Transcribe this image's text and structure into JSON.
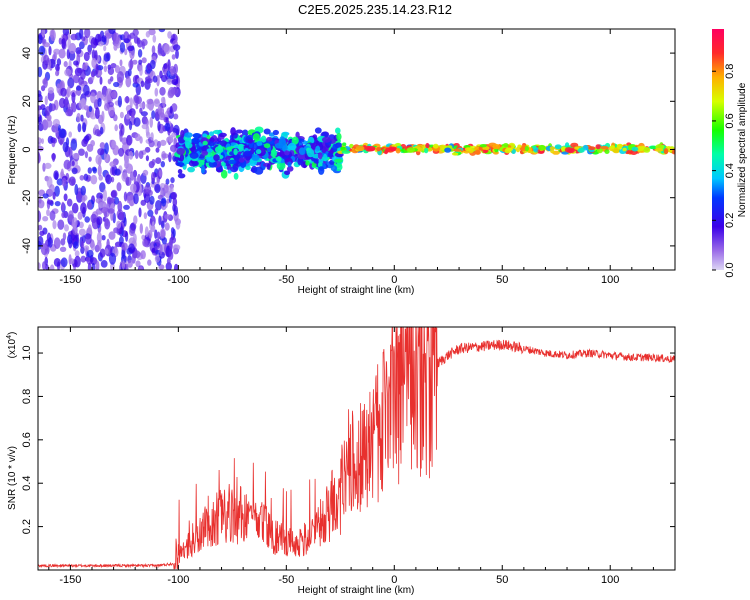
{
  "figure": {
    "title": "C2E5.2025.235.14.23.R12"
  },
  "colors": {
    "snr_line": "#e8302e",
    "axes": "#000000",
    "spectrogram_bg": "#ffffff"
  },
  "chart_data": [
    {
      "type": "heatmap",
      "name": "spectrogram",
      "title": "C2E5.2025.235.14.23.R12",
      "xlabel": "Height of straight line (km)",
      "ylabel": "Frequency (Hz)",
      "xlim": [
        -165,
        130
      ],
      "ylim": [
        -50,
        50
      ],
      "xticks": [
        -150,
        -100,
        -50,
        0,
        50,
        100
      ],
      "yticks": [
        -40,
        -20,
        0,
        20,
        40
      ],
      "description_regions": [
        {
          "x_range": [
            -165,
            -100
          ],
          "freq_range": [
            -50,
            50
          ],
          "amplitude_range": [
            0.05,
            0.25
          ],
          "pattern": "scattered"
        },
        {
          "x_range": [
            -100,
            -25
          ],
          "freq_range": [
            -12,
            10
          ],
          "amplitude_range": [
            0.15,
            0.55
          ],
          "pattern": "band"
        },
        {
          "x_range": [
            -25,
            130
          ],
          "freq_range": [
            -2,
            2.5
          ],
          "amplitude_range": [
            0.3,
            0.95
          ],
          "pattern": "narrow-band"
        }
      ],
      "colorbar": {
        "label": "Normalized spectral amplitude",
        "ticks": [
          0.0,
          0.2,
          0.4,
          0.6,
          0.8
        ],
        "tick_labels": [
          "0.0",
          "0.2",
          "0.4",
          "0.6",
          "0.8"
        ],
        "range": [
          0,
          0.97
        ]
      }
    },
    {
      "type": "line",
      "name": "snr",
      "xlabel": "Height of straight line (km)",
      "ylabel": "SNR (10 * v/v)",
      "scale_label": "(x10",
      "scale_exp": "4",
      "scale_close": ")",
      "xlim": [
        -165,
        130
      ],
      "ylim": [
        0,
        1.12
      ],
      "xticks": [
        -150,
        -100,
        -50,
        0,
        50,
        100
      ],
      "yticks": [
        0.2,
        0.4,
        0.6,
        0.8,
        1.0
      ],
      "ytick_labels": [
        "0.2",
        "0.4",
        "0.6",
        "0.8",
        "1.0"
      ],
      "series": [
        {
          "name": "SNR",
          "x": [
            -165,
            -140,
            -110,
            -102,
            -100,
            -95,
            -90,
            -85,
            -80,
            -75,
            -70,
            -65,
            -60,
            -55,
            -50,
            -45,
            -40,
            -35,
            -30,
            -25,
            -22,
            -20,
            -15,
            -10,
            -5,
            0,
            3,
            5,
            7,
            10,
            15,
            20,
            25,
            30,
            40,
            50,
            60,
            70,
            80,
            90,
            100,
            110,
            120,
            130
          ],
          "y": [
            0.02,
            0.02,
            0.02,
            0.03,
            0.06,
            0.12,
            0.18,
            0.22,
            0.25,
            0.27,
            0.25,
            0.23,
            0.2,
            0.15,
            0.13,
            0.12,
            0.15,
            0.2,
            0.28,
            0.35,
            0.45,
            0.48,
            0.52,
            0.6,
            0.7,
            0.78,
            0.8,
            0.85,
            0.88,
            0.9,
            0.92,
            0.95,
            0.99,
            1.02,
            1.03,
            1.04,
            1.02,
            1.0,
            0.99,
            1.0,
            0.99,
            0.98,
            0.98,
            0.97
          ],
          "noise_amplitude_hint": "high between -100 and 20 km, low elsewhere"
        }
      ]
    }
  ]
}
